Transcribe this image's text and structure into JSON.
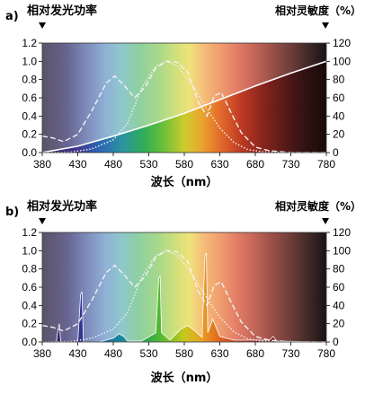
{
  "chart_data": [
    {
      "panel_label": "a)",
      "type": "line",
      "y_left_label": "相对发光功率",
      "y_right_label": "相对灵敏度（%）",
      "xlabel": "波长（nm）",
      "x_ticks": [
        380,
        430,
        480,
        530,
        580,
        630,
        680,
        730,
        780
      ],
      "y_left_ticks": [
        "0.0",
        "0.2",
        "0.4",
        "0.6",
        "0.8",
        "1.0",
        "1.2"
      ],
      "y_right_ticks": [
        "0",
        "20",
        "40",
        "60",
        "80",
        "100",
        "120"
      ],
      "xlim": [
        380,
        780
      ],
      "ylim_left": [
        0,
        1.2
      ],
      "ylim_right": [
        0,
        120
      ],
      "series": [
        {
          "style": "solid",
          "color": "#ffffff",
          "x": [
            380,
            430,
            480,
            530,
            580,
            630,
            680,
            730,
            780
          ],
          "y": [
            0.0,
            0.07,
            0.18,
            0.3,
            0.43,
            0.58,
            0.73,
            0.87,
            1.0
          ]
        },
        {
          "style": "dashed",
          "color": "#f2f2f2",
          "x": [
            380,
            395,
            410,
            430,
            450,
            470,
            482,
            495,
            510,
            525,
            540,
            555,
            570,
            585,
            600,
            612,
            622,
            632,
            645,
            660,
            680,
            700,
            730,
            780
          ],
          "y": [
            0.18,
            0.16,
            0.12,
            0.2,
            0.46,
            0.76,
            0.84,
            0.74,
            0.6,
            0.72,
            0.93,
            1.0,
            0.99,
            0.88,
            0.55,
            0.4,
            0.62,
            0.66,
            0.45,
            0.22,
            0.06,
            0.02,
            0.0,
            0.0
          ]
        },
        {
          "style": "dotted",
          "color": "#f2f2f2",
          "x": [
            380,
            420,
            450,
            480,
            500,
            520,
            540,
            555,
            570,
            590,
            610,
            630,
            650,
            670,
            690,
            720,
            780
          ],
          "y": [
            0.0,
            0.005,
            0.04,
            0.14,
            0.32,
            0.71,
            0.95,
            1.0,
            0.95,
            0.76,
            0.5,
            0.27,
            0.11,
            0.03,
            0.01,
            0.0,
            0.0
          ]
        }
      ]
    },
    {
      "panel_label": "b)",
      "type": "line",
      "y_left_label": "相对发光功率",
      "y_right_label": "相对灵敏度（%）",
      "xlabel": "波长（nm）",
      "x_ticks": [
        380,
        430,
        480,
        530,
        580,
        630,
        680,
        730,
        780
      ],
      "y_left_ticks": [
        "0.0",
        "0.2",
        "0.4",
        "0.6",
        "0.8",
        "1.0",
        "1.2"
      ],
      "y_right_ticks": [
        "0",
        "20",
        "40",
        "60",
        "80",
        "100",
        "120"
      ],
      "xlim": [
        380,
        780
      ],
      "ylim_left": [
        0,
        1.2
      ],
      "ylim_right": [
        0,
        120
      ],
      "series": [
        {
          "style": "filled-peaks",
          "color": "#0a0a0a",
          "x": [
            380,
            400,
            402,
            404,
            406,
            430,
            434,
            436,
            438,
            460,
            480,
            488,
            495,
            500,
            520,
            540,
            544,
            546,
            548,
            560,
            575,
            585,
            595,
            605,
            609,
            611,
            613,
            620,
            630,
            650,
            700,
            705,
            710,
            780
          ],
          "y": [
            0,
            0,
            0.13,
            0.2,
            0,
            0,
            0.52,
            0.55,
            0,
            0,
            0.04,
            0.09,
            0.06,
            0.01,
            0.01,
            0.1,
            0.7,
            0.72,
            0.1,
            0.02,
            0.14,
            0.18,
            0.12,
            0.05,
            0.95,
            0.97,
            0.1,
            0.25,
            0.06,
            0.02,
            0.02,
            0.06,
            0.01,
            0
          ]
        },
        {
          "style": "dashed",
          "color": "#f2f2f2",
          "x": [
            380,
            395,
            410,
            430,
            450,
            470,
            482,
            495,
            510,
            525,
            540,
            555,
            570,
            585,
            600,
            612,
            622,
            632,
            645,
            660,
            680,
            700,
            730,
            780
          ],
          "y": [
            0.18,
            0.16,
            0.12,
            0.2,
            0.46,
            0.76,
            0.84,
            0.74,
            0.6,
            0.72,
            0.93,
            1.0,
            0.99,
            0.88,
            0.55,
            0.4,
            0.62,
            0.66,
            0.45,
            0.22,
            0.06,
            0.02,
            0.0,
            0.0
          ]
        },
        {
          "style": "dotted",
          "color": "#f2f2f2",
          "x": [
            380,
            420,
            450,
            480,
            500,
            520,
            540,
            555,
            570,
            590,
            610,
            630,
            650,
            670,
            690,
            720,
            780
          ],
          "y": [
            0.0,
            0.005,
            0.04,
            0.14,
            0.32,
            0.71,
            0.95,
            1.0,
            0.95,
            0.76,
            0.5,
            0.27,
            0.11,
            0.03,
            0.01,
            0.0,
            0.0
          ]
        }
      ]
    }
  ]
}
